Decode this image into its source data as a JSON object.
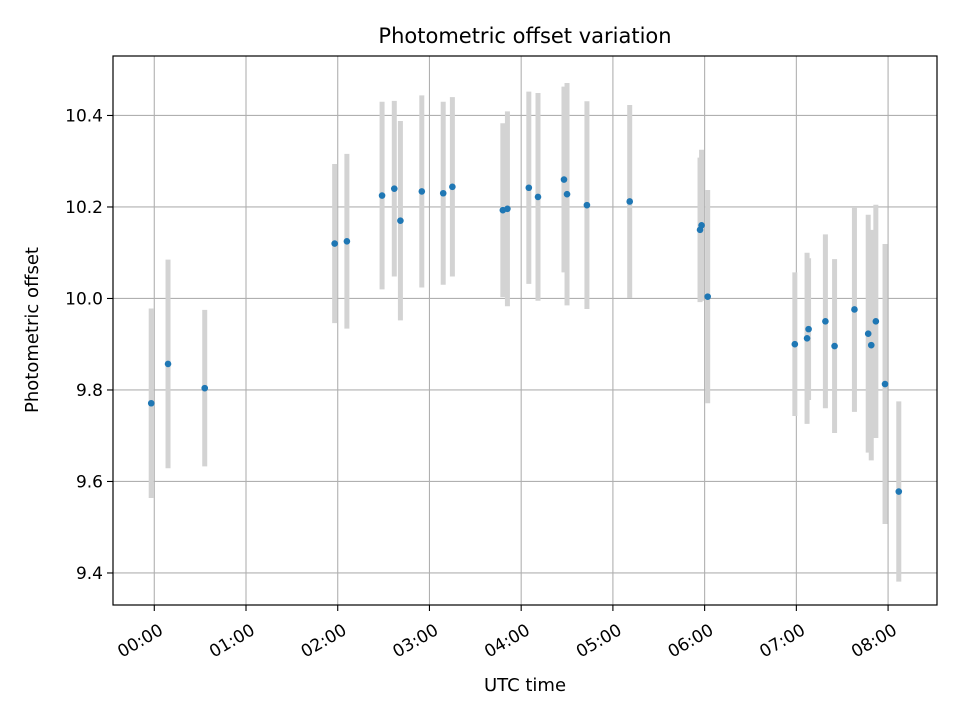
{
  "chart_data": {
    "type": "scatter",
    "title": "Photometric offset variation",
    "xlabel": "UTC time",
    "ylabel": "Photometric offset",
    "x_tick_labels": [
      "00:00",
      "01:00",
      "02:00",
      "03:00",
      "04:00",
      "05:00",
      "06:00",
      "07:00",
      "08:00"
    ],
    "x_ticks_minutes": [
      0,
      60,
      120,
      180,
      240,
      300,
      360,
      420,
      480
    ],
    "y_tick_labels": [
      "9.4",
      "9.6",
      "9.8",
      "10.0",
      "10.2",
      "10.4"
    ],
    "y_ticks": [
      9.4,
      9.6,
      9.8,
      10.0,
      10.2,
      10.4
    ],
    "xlim_minutes": [
      -27,
      512
    ],
    "ylim": [
      9.33,
      10.53
    ],
    "grid": true,
    "marker_color": "#1f77b4",
    "errorbar_color": "#d3d3d3",
    "points": [
      {
        "time": "23:58",
        "y": 9.771,
        "err": 0.207
      },
      {
        "time": "00:09",
        "y": 9.857,
        "err": 0.228
      },
      {
        "time": "00:33",
        "y": 9.804,
        "err": 0.171
      },
      {
        "time": "01:58",
        "y": 10.12,
        "err": 0.174
      },
      {
        "time": "02:06",
        "y": 10.125,
        "err": 0.191
      },
      {
        "time": "02:29",
        "y": 10.225,
        "err": 0.205
      },
      {
        "time": "02:37",
        "y": 10.24,
        "err": 0.192
      },
      {
        "time": "02:41",
        "y": 10.17,
        "err": 0.218
      },
      {
        "time": "02:55",
        "y": 10.234,
        "err": 0.21
      },
      {
        "time": "03:09",
        "y": 10.23,
        "err": 0.2
      },
      {
        "time": "03:15",
        "y": 10.244,
        "err": 0.196
      },
      {
        "time": "03:48",
        "y": 10.193,
        "err": 0.19
      },
      {
        "time": "03:51",
        "y": 10.196,
        "err": 0.213
      },
      {
        "time": "04:05",
        "y": 10.242,
        "err": 0.21
      },
      {
        "time": "04:11",
        "y": 10.222,
        "err": 0.227
      },
      {
        "time": "04:28",
        "y": 10.26,
        "err": 0.203
      },
      {
        "time": "04:30",
        "y": 10.228,
        "err": 0.243
      },
      {
        "time": "04:43",
        "y": 10.204,
        "err": 0.227
      },
      {
        "time": "05:11",
        "y": 10.212,
        "err": 0.211
      },
      {
        "time": "05:57",
        "y": 10.15,
        "err": 0.158
      },
      {
        "time": "05:58",
        "y": 10.16,
        "err": 0.165
      },
      {
        "time": "06:02",
        "y": 10.004,
        "err": 0.233
      },
      {
        "time": "06:59",
        "y": 9.9,
        "err": 0.157
      },
      {
        "time": "07:07",
        "y": 9.913,
        "err": 0.187
      },
      {
        "time": "07:08",
        "y": 9.933,
        "err": 0.155
      },
      {
        "time": "07:19",
        "y": 9.95,
        "err": 0.19
      },
      {
        "time": "07:25",
        "y": 9.896,
        "err": 0.19
      },
      {
        "time": "07:38",
        "y": 9.976,
        "err": 0.224
      },
      {
        "time": "07:47",
        "y": 9.923,
        "err": 0.26
      },
      {
        "time": "07:49",
        "y": 9.898,
        "err": 0.252
      },
      {
        "time": "07:52",
        "y": 9.95,
        "err": 0.255
      },
      {
        "time": "07:58",
        "y": 9.813,
        "err": 0.306
      },
      {
        "time": "08:07",
        "y": 9.578,
        "err": 0.197
      }
    ]
  }
}
